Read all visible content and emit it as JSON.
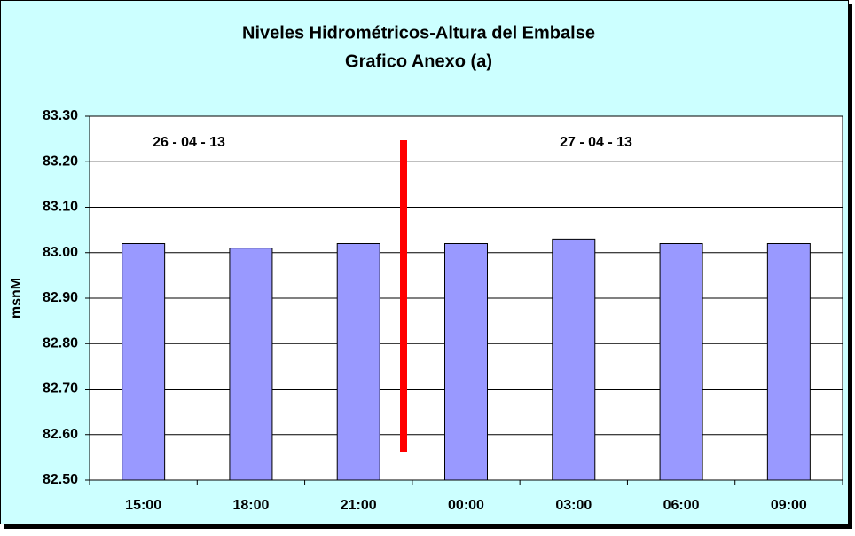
{
  "chart_data": {
    "type": "bar",
    "title": [
      "Niveles Hidrométricos-Altura del Embalse",
      "Grafico Anexo (a)"
    ],
    "y_label": "msnM",
    "categories": [
      "15:00",
      "18:00",
      "21:00",
      "00:00",
      "03:00",
      "06:00",
      "09:00"
    ],
    "values": [
      83.02,
      83.01,
      83.02,
      83.02,
      83.03,
      83.02,
      83.02
    ],
    "color": "#9999ff",
    "ylim": [
      82.5,
      83.3
    ],
    "yticks": [
      {
        "value": 82.5,
        "label": "82.50"
      },
      {
        "value": 82.6,
        "label": "82.60"
      },
      {
        "value": 82.7,
        "label": "82.70"
      },
      {
        "value": 82.8,
        "label": "82.80"
      },
      {
        "value": 82.9,
        "label": "82.90"
      },
      {
        "value": 83.0,
        "label": "83.00"
      },
      {
        "value": 83.1,
        "label": "83.10"
      },
      {
        "value": 83.2,
        "label": "83.20"
      },
      {
        "value": 83.3,
        "label": "83.30"
      }
    ],
    "grid": true,
    "annotations": [
      "26 - 04 - 13",
      "27 - 04 - 13"
    ]
  }
}
